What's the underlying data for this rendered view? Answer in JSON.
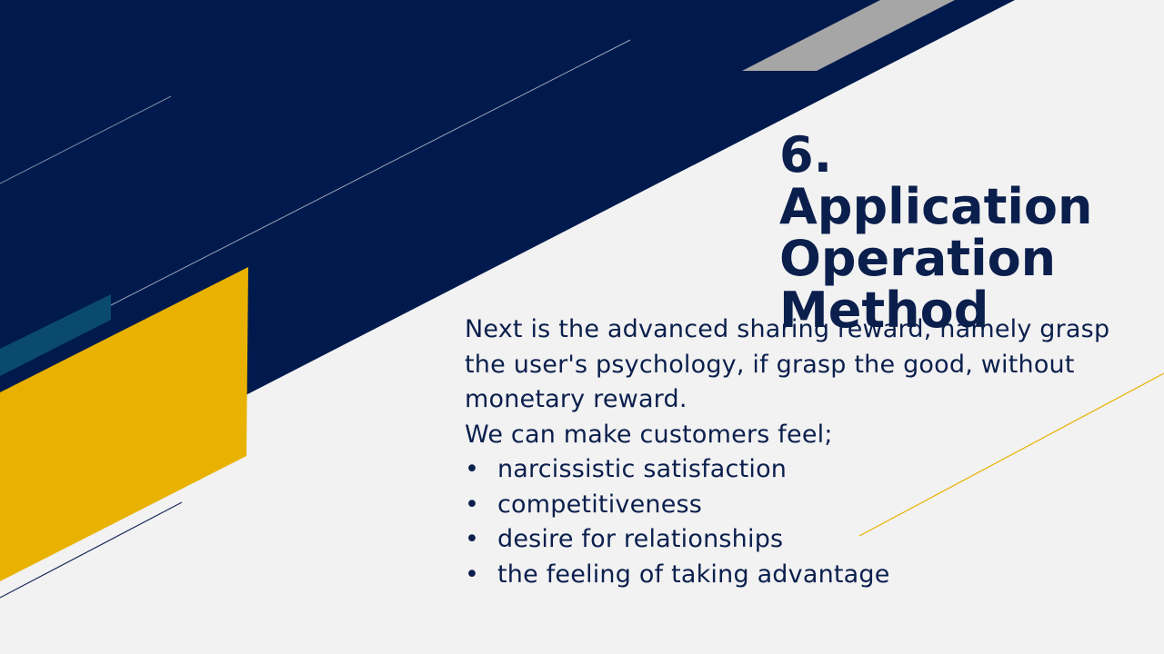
{
  "slide": {
    "title_number": "6.",
    "title_lines": [
      "Application",
      "Operation",
      "Method"
    ],
    "paragraph_lines": [
      "Next is the advanced sharing reward, namely grasp",
      "the user's psychology, if grasp the good, without",
      "monetary reward.",
      "We can make customers feel;"
    ],
    "bullet_char": "•",
    "bullets": [
      "narcissistic satisfaction",
      "competitiveness",
      "desire for relationships",
      "the feeling of taking advantage"
    ]
  },
  "colors": {
    "navy": "#001a4d",
    "gold": "#e9b200",
    "gray": "#a6a6a6",
    "teal": "#0a4a6e",
    "background": "#f2f2f2",
    "text": "#0b1f4d"
  }
}
